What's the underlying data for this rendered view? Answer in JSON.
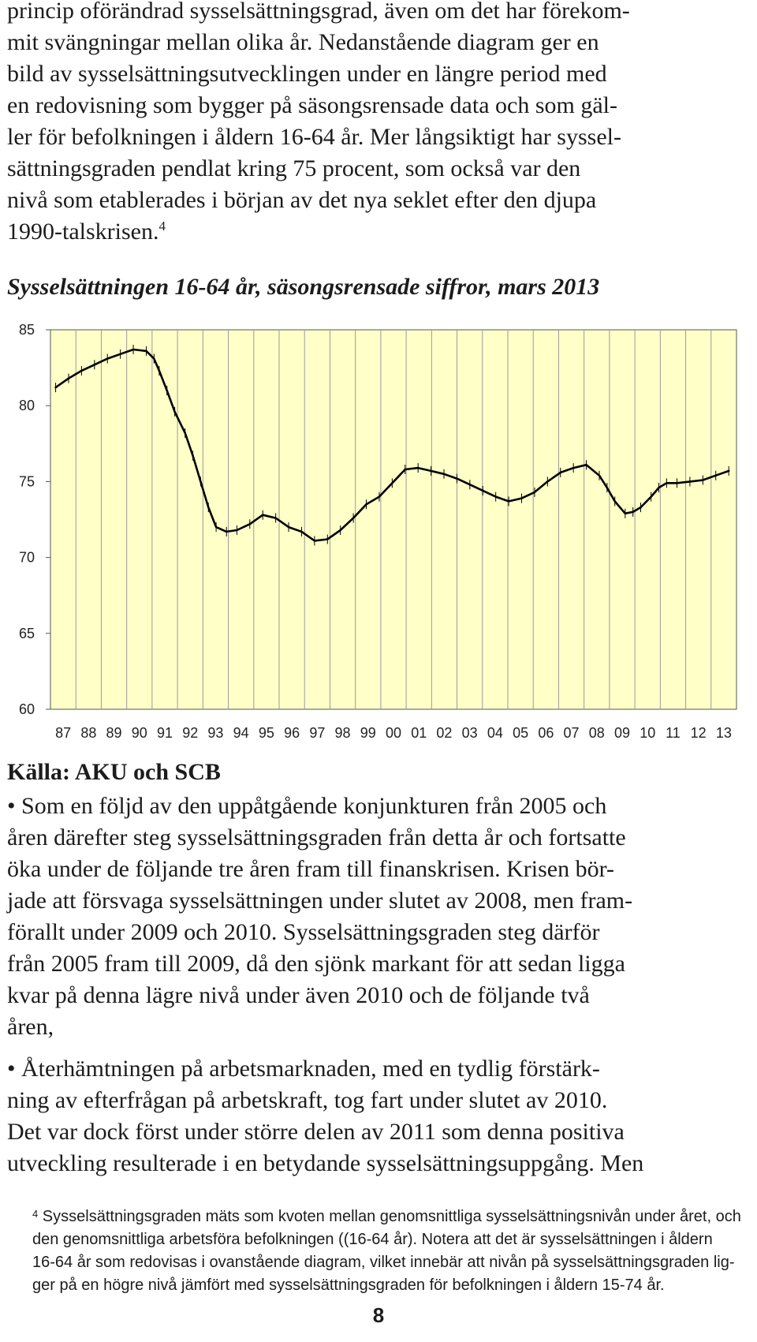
{
  "intro": {
    "lines": [
      "princip oförändrad sysselsättningsgrad, även om det har förekom-",
      "mit svängningar mellan olika år. Nedanstående diagram ger en",
      "bild av sysselsättningsutvecklingen under en längre period med",
      "en redovisning som bygger på säsongsrensade data och som gäl-",
      "ler för befolkningen i åldern 16-64 år. Mer långsiktigt har syssel-",
      "sättningsgraden pendlat kring 75 procent, som också var den",
      "nivå som etablerades i början av det nya seklet efter den djupa",
      "1990-talskrisen."
    ],
    "footnote_ref": "4"
  },
  "chart_data": {
    "type": "line",
    "title": "Sysselsättningen 16-64 år, säsongsrensade siffror, mars 2013",
    "xlabel": "",
    "ylabel": "",
    "ylim": [
      60,
      85
    ],
    "yticks": [
      60,
      65,
      70,
      75,
      80,
      85
    ],
    "xlim": [
      1986.8,
      2013.3
    ],
    "categories": [
      "87",
      "88",
      "89",
      "90",
      "91",
      "92",
      "93",
      "94",
      "95",
      "96",
      "97",
      "98",
      "99",
      "00",
      "01",
      "02",
      "03",
      "04",
      "05",
      "06",
      "07",
      "08",
      "09",
      "10",
      "11",
      "12",
      "13"
    ],
    "grid": "vertical",
    "background": "#ffffc8",
    "line_color": "#000000",
    "series": [
      {
        "name": "",
        "x": [
          1987.0,
          1987.5,
          1988.0,
          1988.5,
          1989.0,
          1989.5,
          1990.0,
          1990.5,
          1990.8,
          1991.0,
          1991.3,
          1991.6,
          1992.0,
          1992.3,
          1992.6,
          1992.9,
          1993.2,
          1993.6,
          1994.0,
          1994.5,
          1995.0,
          1995.5,
          1996.0,
          1996.5,
          1997.0,
          1997.5,
          1998.0,
          1998.5,
          1999.0,
          1999.5,
          2000.0,
          2000.5,
          2001.0,
          2001.5,
          2002.0,
          2002.5,
          2003.0,
          2003.5,
          2004.0,
          2004.5,
          2005.0,
          2005.5,
          2006.0,
          2006.5,
          2007.0,
          2007.5,
          2008.0,
          2008.3,
          2008.6,
          2009.0,
          2009.3,
          2009.6,
          2010.0,
          2010.3,
          2010.6,
          2011.0,
          2011.5,
          2012.0,
          2012.5,
          2013.0
        ],
        "values": [
          81.2,
          81.8,
          82.3,
          82.7,
          83.1,
          83.4,
          83.7,
          83.6,
          83.1,
          82.3,
          81.0,
          79.6,
          78.2,
          76.7,
          75.0,
          73.3,
          72.0,
          71.7,
          71.8,
          72.2,
          72.8,
          72.6,
          72.0,
          71.7,
          71.1,
          71.2,
          71.8,
          72.6,
          73.5,
          74.0,
          74.9,
          75.8,
          75.9,
          75.7,
          75.5,
          75.2,
          74.8,
          74.4,
          74.0,
          73.7,
          73.9,
          74.3,
          75.0,
          75.6,
          75.9,
          76.1,
          75.4,
          74.6,
          73.7,
          72.9,
          73.0,
          73.3,
          74.0,
          74.6,
          74.9,
          74.9,
          75.0,
          75.1,
          75.4,
          75.7
        ]
      }
    ]
  },
  "source": "Källa: AKU och SCB",
  "bullet1": {
    "lines": [
      "• Som en följd av den uppåtgående konjunkturen från 2005 och",
      "åren därefter steg sysselsättningsgraden från detta år och fortsatte",
      "öka under de följande tre åren fram till finanskrisen. Krisen bör-",
      "jade att försvaga sysselsättningen under slutet av 2008, men fram-",
      "förallt under 2009 och 2010. Sysselsättningsgraden steg därför",
      "från 2005 fram till 2009, då den sjönk markant för att sedan ligga",
      "kvar på denna lägre nivå under även 2010 och de följande två",
      "åren,"
    ]
  },
  "bullet2": {
    "lines": [
      "• Återhämtningen på arbetsmarknaden, med en tydlig förstärk-",
      "ning av efterfrågan på arbetskraft, tog fart under slutet av 2010.",
      "Det var dock först under större delen av 2011 som denna positiva",
      "utveckling resulterade i en betydande sysselsättningsuppgång. Men"
    ]
  },
  "footnote": {
    "marker": "4",
    "lines": [
      "Sysselsättningsgraden mäts som kvoten mellan genomsnittliga sysselsättningsnivån under året, och",
      "den genomsnittliga arbetsföra befolkningen ((16-64 år). Notera att det är sysselsättningen i åldern",
      "16-64 år som redovisas i ovanstående diagram, vilket innebär att nivån på sysselsättningsgraden lig-",
      "ger på en högre nivå jämfört med sysselsättningsgraden för befolkningen i åldern 15-74 år."
    ]
  },
  "page_number": "8"
}
